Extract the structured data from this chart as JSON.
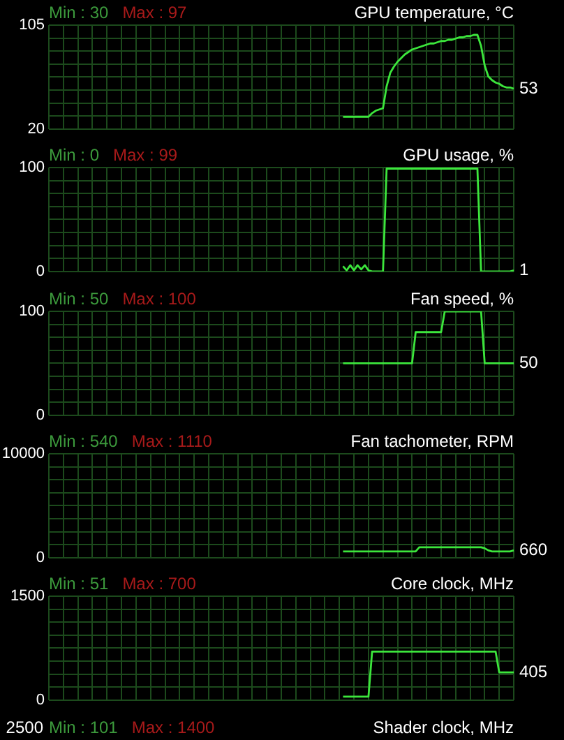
{
  "chart_data": [
    {
      "type": "line",
      "title": "GPU temperature, °C",
      "color": "#3ce63c",
      "grid": true,
      "tick_labels": "y",
      "ylim": [
        20,
        105
      ],
      "yticks": [
        20,
        {
          "value": 30.625,
          "label": null
        },
        {
          "value": 41.25,
          "label": null
        },
        {
          "value": 51.875,
          "label": null
        },
        {
          "value": 62.5,
          "label": null
        },
        {
          "value": 73.125,
          "label": null
        },
        {
          "value": 83.75,
          "label": null
        },
        {
          "value": 94.375,
          "label": null
        },
        105
      ],
      "annotations": [
        "Min : 30",
        "Max : 97",
        "53"
      ],
      "categories": [
        null,
        null,
        null,
        null,
        null,
        null,
        null,
        null,
        null,
        null,
        null,
        null,
        null,
        null,
        null,
        null,
        null,
        null,
        null,
        null,
        null,
        null,
        null,
        null,
        null,
        null,
        null,
        null,
        null,
        null,
        null,
        null,
        null,
        null,
        null,
        null,
        null,
        null,
        null,
        null,
        null,
        null,
        null,
        null,
        null,
        null,
        null,
        null,
        null,
        null,
        null,
        null,
        null,
        null,
        null,
        null,
        null,
        null,
        null,
        null,
        null,
        null,
        null,
        null,
        null,
        null,
        null,
        null,
        null,
        null,
        null,
        null,
        null,
        null,
        null,
        null,
        null,
        null,
        null,
        null,
        null,
        null,
        null,
        null,
        null,
        null,
        null,
        null,
        null,
        null,
        null,
        null,
        null,
        null,
        null,
        null,
        null,
        null,
        null,
        null,
        null,
        null,
        null,
        null,
        null,
        null,
        null,
        null,
        null,
        null,
        null,
        null,
        null,
        null,
        null,
        null,
        null,
        null,
        null,
        null,
        null,
        null,
        null,
        null,
        null,
        null,
        null,
        null,
        null
      ],
      "values": [
        null,
        null,
        null,
        null,
        null,
        null,
        null,
        null,
        null,
        null,
        null,
        null,
        null,
        null,
        null,
        null,
        null,
        null,
        null,
        null,
        null,
        null,
        null,
        null,
        null,
        null,
        null,
        null,
        null,
        null,
        null,
        null,
        null,
        null,
        null,
        null,
        null,
        null,
        null,
        null,
        null,
        null,
        null,
        null,
        null,
        null,
        null,
        null,
        null,
        null,
        null,
        null,
        null,
        null,
        null,
        null,
        null,
        null,
        null,
        null,
        null,
        null,
        null,
        null,
        null,
        null,
        null,
        null,
        null,
        null,
        null,
        null,
        null,
        null,
        null,
        null,
        null,
        null,
        null,
        null,
        null,
        30,
        30,
        30,
        30,
        30,
        30,
        30,
        30,
        33,
        35,
        36,
        37,
        55,
        66,
        71,
        75,
        78,
        81,
        83,
        85,
        86,
        87,
        88,
        89,
        90,
        90,
        91,
        92,
        92,
        93,
        93,
        94,
        95,
        95,
        96,
        96,
        97,
        97,
        88,
        72,
        63,
        60,
        58,
        57,
        55,
        54,
        54,
        53
      ]
    },
    {
      "type": "line",
      "title": "GPU usage, %",
      "color": "#3ce63c",
      "grid": true,
      "tick_labels": "y",
      "ylim": [
        0,
        100
      ],
      "yticks": [
        0,
        {
          "value": 12.5,
          "label": null
        },
        {
          "value": 25,
          "label": null
        },
        {
          "value": 37.5,
          "label": null
        },
        {
          "value": 50,
          "label": null
        },
        {
          "value": 62.5,
          "label": null
        },
        {
          "value": 75,
          "label": null
        },
        {
          "value": 87.5,
          "label": null
        },
        100
      ],
      "annotations": [
        "Min : 0",
        "Max : 99",
        "1"
      ],
      "categories": [
        null,
        null,
        null,
        null,
        null,
        null,
        null,
        null,
        null,
        null,
        null,
        null,
        null,
        null,
        null,
        null,
        null,
        null,
        null,
        null,
        null,
        null,
        null,
        null,
        null,
        null,
        null,
        null,
        null,
        null,
        null,
        null,
        null,
        null,
        null,
        null,
        null,
        null,
        null,
        null,
        null,
        null,
        null,
        null,
        null,
        null,
        null,
        null,
        null,
        null,
        null,
        null,
        null,
        null,
        null,
        null,
        null,
        null,
        null,
        null,
        null,
        null,
        null,
        null,
        null,
        null,
        null,
        null,
        null,
        null,
        null,
        null,
        null,
        null,
        null,
        null,
        null,
        null,
        null,
        null,
        null,
        null,
        null,
        null,
        null,
        null,
        null,
        null,
        null,
        null,
        null,
        null,
        null,
        null,
        null,
        null,
        null,
        null,
        null,
        null,
        null,
        null,
        null,
        null,
        null,
        null,
        null,
        null,
        null,
        null,
        null,
        null,
        null,
        null,
        null,
        null,
        null,
        null,
        null,
        null,
        null,
        null,
        null,
        null,
        null,
        null,
        null,
        null,
        null
      ],
      "values": [
        null,
        null,
        null,
        null,
        null,
        null,
        null,
        null,
        null,
        null,
        null,
        null,
        null,
        null,
        null,
        null,
        null,
        null,
        null,
        null,
        null,
        null,
        null,
        null,
        null,
        null,
        null,
        null,
        null,
        null,
        null,
        null,
        null,
        null,
        null,
        null,
        null,
        null,
        null,
        null,
        null,
        null,
        null,
        null,
        null,
        null,
        null,
        null,
        null,
        null,
        null,
        null,
        null,
        null,
        null,
        null,
        null,
        null,
        null,
        null,
        null,
        null,
        null,
        null,
        null,
        null,
        null,
        null,
        null,
        null,
        null,
        null,
        null,
        null,
        null,
        null,
        null,
        null,
        null,
        null,
        null,
        5,
        1,
        6,
        1,
        6,
        2,
        6,
        1,
        0,
        0,
        0,
        0,
        99,
        99,
        99,
        99,
        99,
        99,
        99,
        99,
        99,
        99,
        99,
        99,
        99,
        99,
        99,
        99,
        99,
        99,
        99,
        99,
        99,
        99,
        99,
        99,
        99,
        99,
        0,
        0,
        0,
        0,
        0,
        0,
        0,
        0,
        0,
        1
      ]
    },
    {
      "type": "line",
      "title": "Fan speed, %",
      "color": "#3ce63c",
      "grid": true,
      "tick_labels": "y",
      "ylim": [
        0,
        100
      ],
      "yticks": [
        0,
        {
          "value": 12.5,
          "label": null
        },
        {
          "value": 25,
          "label": null
        },
        {
          "value": 37.5,
          "label": null
        },
        {
          "value": 50,
          "label": null
        },
        {
          "value": 62.5,
          "label": null
        },
        {
          "value": 75,
          "label": null
        },
        {
          "value": 87.5,
          "label": null
        },
        100
      ],
      "annotations": [
        "Min : 50",
        "Max : 100",
        "50"
      ],
      "categories": [
        null,
        null,
        null,
        null,
        null,
        null,
        null,
        null,
        null,
        null,
        null,
        null,
        null,
        null,
        null,
        null,
        null,
        null,
        null,
        null,
        null,
        null,
        null,
        null,
        null,
        null,
        null,
        null,
        null,
        null,
        null,
        null,
        null,
        null,
        null,
        null,
        null,
        null,
        null,
        null,
        null,
        null,
        null,
        null,
        null,
        null,
        null,
        null,
        null,
        null,
        null,
        null,
        null,
        null,
        null,
        null,
        null,
        null,
        null,
        null,
        null,
        null,
        null,
        null,
        null,
        null,
        null,
        null,
        null,
        null,
        null,
        null,
        null,
        null,
        null,
        null,
        null,
        null,
        null,
        null,
        null,
        null,
        null,
        null,
        null,
        null,
        null,
        null,
        null,
        null,
        null,
        null,
        null,
        null,
        null,
        null,
        null,
        null,
        null,
        null,
        null,
        null,
        null,
        null,
        null,
        null,
        null,
        null,
        null,
        null,
        null,
        null,
        null,
        null,
        null,
        null,
        null,
        null,
        null,
        null,
        null,
        null,
        null,
        null,
        null,
        null,
        null,
        null,
        null
      ],
      "values": [
        null,
        null,
        null,
        null,
        null,
        null,
        null,
        null,
        null,
        null,
        null,
        null,
        null,
        null,
        null,
        null,
        null,
        null,
        null,
        null,
        null,
        null,
        null,
        null,
        null,
        null,
        null,
        null,
        null,
        null,
        null,
        null,
        null,
        null,
        null,
        null,
        null,
        null,
        null,
        null,
        null,
        null,
        null,
        null,
        null,
        null,
        null,
        null,
        null,
        null,
        null,
        null,
        null,
        null,
        null,
        null,
        null,
        null,
        null,
        null,
        null,
        null,
        null,
        null,
        null,
        null,
        null,
        null,
        null,
        null,
        null,
        null,
        null,
        null,
        null,
        null,
        null,
        null,
        null,
        null,
        null,
        50,
        50,
        50,
        50,
        50,
        50,
        50,
        50,
        50,
        50,
        50,
        50,
        50,
        50,
        50,
        50,
        50,
        50,
        50,
        50,
        80,
        80,
        80,
        80,
        80,
        80,
        80,
        80,
        100,
        100,
        100,
        100,
        100,
        100,
        100,
        100,
        100,
        100,
        100,
        50,
        50,
        50,
        50,
        50,
        50,
        50,
        50,
        50
      ]
    },
    {
      "type": "line",
      "title": "Fan tachometer, RPM",
      "color": "#3ce63c",
      "grid": true,
      "tick_labels": "y",
      "ylim": [
        0,
        10000
      ],
      "yticks": [
        0,
        {
          "value": 1250,
          "label": null
        },
        {
          "value": 2500,
          "label": null
        },
        {
          "value": 3750,
          "label": null
        },
        {
          "value": 5000,
          "label": null
        },
        {
          "value": 6250,
          "label": null
        },
        {
          "value": 7500,
          "label": null
        },
        {
          "value": 8750,
          "label": null
        },
        10000
      ],
      "annotations": [
        "Min : 540",
        "Max : 1110",
        "660"
      ],
      "categories": [
        null,
        null,
        null,
        null,
        null,
        null,
        null,
        null,
        null,
        null,
        null,
        null,
        null,
        null,
        null,
        null,
        null,
        null,
        null,
        null,
        null,
        null,
        null,
        null,
        null,
        null,
        null,
        null,
        null,
        null,
        null,
        null,
        null,
        null,
        null,
        null,
        null,
        null,
        null,
        null,
        null,
        null,
        null,
        null,
        null,
        null,
        null,
        null,
        null,
        null,
        null,
        null,
        null,
        null,
        null,
        null,
        null,
        null,
        null,
        null,
        null,
        null,
        null,
        null,
        null,
        null,
        null,
        null,
        null,
        null,
        null,
        null,
        null,
        null,
        null,
        null,
        null,
        null,
        null,
        null,
        null,
        null,
        null,
        null,
        null,
        null,
        null,
        null,
        null,
        null,
        null,
        null,
        null,
        null,
        null,
        null,
        null,
        null,
        null,
        null,
        null,
        null,
        null,
        null,
        null,
        null,
        null,
        null,
        null,
        null,
        null,
        null,
        null,
        null,
        null,
        null,
        null,
        null,
        null,
        null,
        null,
        null,
        null,
        null,
        null,
        null,
        null,
        null,
        null
      ],
      "values": [
        null,
        null,
        null,
        null,
        null,
        null,
        null,
        null,
        null,
        null,
        null,
        null,
        null,
        null,
        null,
        null,
        null,
        null,
        null,
        null,
        null,
        null,
        null,
        null,
        null,
        null,
        null,
        null,
        null,
        null,
        null,
        null,
        null,
        null,
        null,
        null,
        null,
        null,
        null,
        null,
        null,
        null,
        null,
        null,
        null,
        null,
        null,
        null,
        null,
        null,
        null,
        null,
        null,
        null,
        null,
        null,
        null,
        null,
        null,
        null,
        null,
        null,
        null,
        null,
        null,
        null,
        null,
        null,
        null,
        null,
        null,
        null,
        null,
        null,
        null,
        null,
        null,
        null,
        null,
        null,
        null,
        600,
        600,
        600,
        600,
        600,
        600,
        600,
        600,
        600,
        600,
        600,
        600,
        600,
        600,
        600,
        600,
        600,
        600,
        600,
        600,
        600,
        1000,
        1000,
        1000,
        1000,
        1000,
        1000,
        1000,
        1000,
        1000,
        1000,
        1000,
        1000,
        1000,
        1000,
        1000,
        1000,
        1000,
        1000,
        900,
        700,
        600,
        600,
        600,
        600,
        600,
        600,
        700
      ]
    },
    {
      "type": "line",
      "title": "Core clock, MHz",
      "color": "#3ce63c",
      "grid": true,
      "tick_labels": "y",
      "ylim": [
        0,
        1500
      ],
      "yticks": [
        0,
        {
          "value": 187.5,
          "label": null
        },
        {
          "value": 375,
          "label": null
        },
        {
          "value": 562.5,
          "label": null
        },
        {
          "value": 750,
          "label": null
        },
        {
          "value": 937.5,
          "label": null
        },
        {
          "value": 1125,
          "label": null
        },
        {
          "value": 1312.5,
          "label": null
        },
        1500
      ],
      "annotations": [
        "Min : 51",
        "Max : 700",
        "405"
      ],
      "categories": [
        null,
        null,
        null,
        null,
        null,
        null,
        null,
        null,
        null,
        null,
        null,
        null,
        null,
        null,
        null,
        null,
        null,
        null,
        null,
        null,
        null,
        null,
        null,
        null,
        null,
        null,
        null,
        null,
        null,
        null,
        null,
        null,
        null,
        null,
        null,
        null,
        null,
        null,
        null,
        null,
        null,
        null,
        null,
        null,
        null,
        null,
        null,
        null,
        null,
        null,
        null,
        null,
        null,
        null,
        null,
        null,
        null,
        null,
        null,
        null,
        null,
        null,
        null,
        null,
        null,
        null,
        null,
        null,
        null,
        null,
        null,
        null,
        null,
        null,
        null,
        null,
        null,
        null,
        null,
        null,
        null,
        null,
        null,
        null,
        null,
        null,
        null,
        null,
        null,
        null,
        null,
        null,
        null,
        null,
        null,
        null,
        null,
        null,
        null,
        null,
        null,
        null,
        null,
        null,
        null,
        null,
        null,
        null,
        null,
        null,
        null,
        null,
        null,
        null,
        null,
        null,
        null,
        null,
        null,
        null,
        null,
        null,
        null,
        null,
        null,
        null,
        null,
        null,
        null
      ],
      "values": [
        null,
        null,
        null,
        null,
        null,
        null,
        null,
        null,
        null,
        null,
        null,
        null,
        null,
        null,
        null,
        null,
        null,
        null,
        null,
        null,
        null,
        null,
        null,
        null,
        null,
        null,
        null,
        null,
        null,
        null,
        null,
        null,
        null,
        null,
        null,
        null,
        null,
        null,
        null,
        null,
        null,
        null,
        null,
        null,
        null,
        null,
        null,
        null,
        null,
        null,
        null,
        null,
        null,
        null,
        null,
        null,
        null,
        null,
        null,
        null,
        null,
        null,
        null,
        null,
        null,
        null,
        null,
        null,
        null,
        null,
        null,
        null,
        null,
        null,
        null,
        null,
        null,
        null,
        null,
        null,
        null,
        50,
        50,
        50,
        50,
        50,
        50,
        50,
        50,
        700,
        700,
        700,
        700,
        700,
        700,
        700,
        700,
        700,
        700,
        700,
        700,
        700,
        700,
        700,
        700,
        700,
        700,
        700,
        700,
        700,
        700,
        700,
        700,
        700,
        700,
        700,
        700,
        700,
        700,
        700,
        700,
        700,
        700,
        700,
        400,
        400,
        400,
        400,
        400
      ]
    },
    {
      "type": "other",
      "title": "Shader clock, MHz",
      "annotations": [
        "Min : 101",
        "Max : 1400",
        "2500"
      ]
    }
  ]
}
